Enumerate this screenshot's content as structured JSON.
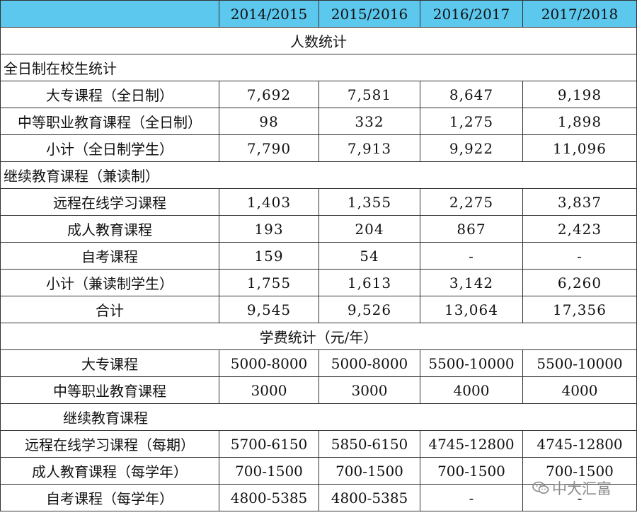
{
  "header": [
    "",
    "2014/2015",
    "2015/2016",
    "2016/2017",
    "2017/2018"
  ],
  "section1_title": "人数统计",
  "group1_title": "全日制在校生统计",
  "group1_rows": [
    {
      "label": "大专课程（全日制）",
      "values": [
        "7,692",
        "7,581",
        "8,647",
        "9,198"
      ]
    },
    {
      "label": "中等职业教育课程（全日制）",
      "values": [
        "98",
        "332",
        "1,275",
        "1,898"
      ]
    },
    {
      "label": "小计（全日制学生）",
      "values": [
        "7,790",
        "7,913",
        "9,922",
        "11,096"
      ]
    }
  ],
  "group2_title": "继续教育课程（兼读制）",
  "group2_rows": [
    {
      "label": "远程在线学习课程",
      "values": [
        "1,403",
        "1,355",
        "2,275",
        "3,837"
      ]
    },
    {
      "label": "成人教育课程",
      "values": [
        "193",
        "204",
        "867",
        "2,423"
      ]
    },
    {
      "label": "自考课程",
      "values": [
        "159",
        "54",
        "-",
        "-"
      ]
    },
    {
      "label": "小计（兼读制学生）",
      "values": [
        "1,755",
        "1,613",
        "3,142",
        "6,260"
      ]
    },
    {
      "label": "合计",
      "values": [
        "9,545",
        "9,526",
        "13,064",
        "17,356"
      ]
    }
  ],
  "section2_title": "学费统计（元/年）",
  "fee_rows": [
    {
      "label": "大专课程",
      "values": [
        "5000-8000",
        "5000-8000",
        "5500-10000",
        "5500-10000"
      ]
    },
    {
      "label": "中等职业教育课程",
      "values": [
        "3000",
        "3000",
        "4000",
        "4000"
      ]
    }
  ],
  "group3_title": "继续教育课程",
  "fee_rows2": [
    {
      "label": "远程在线学习课程（每期）",
      "values": [
        "5700-6150",
        "5850-6150",
        "4745-12800",
        "4745-12800"
      ]
    },
    {
      "label": "成人教育课程（每学年）",
      "values": [
        "700-1500",
        "700-1500",
        "700-1500",
        "700-1500"
      ]
    },
    {
      "label": "自考课程（每学年）",
      "values": [
        "4800-5385",
        "4800-5385",
        "-",
        "-"
      ]
    }
  ],
  "watermark": "中大汇富",
  "watermark_icon": "wechat-icon"
}
